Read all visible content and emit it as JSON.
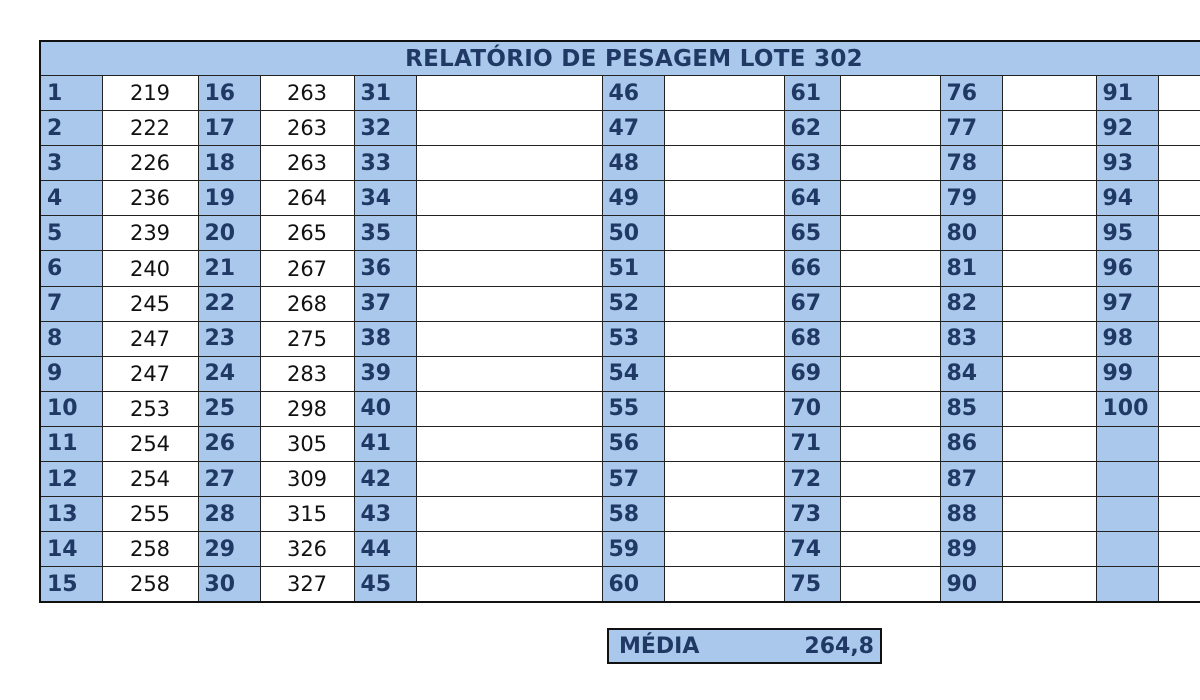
{
  "title": "RELATÓRIO DE PESAGEM LOTE 302",
  "weights": {
    "1": "219",
    "2": "222",
    "3": "226",
    "4": "236",
    "5": "239",
    "6": "240",
    "7": "245",
    "8": "247",
    "9": "247",
    "10": "253",
    "11": "254",
    "12": "254",
    "13": "255",
    "14": "258",
    "15": "258",
    "16": "263",
    "17": "263",
    "18": "263",
    "19": "264",
    "20": "265",
    "21": "267",
    "22": "268",
    "23": "275",
    "24": "283",
    "25": "298",
    "26": "305",
    "27": "309",
    "28": "315",
    "29": "326",
    "30": "327"
  },
  "total_animals": 100,
  "rows_per_column": 15,
  "footer": {
    "label": "MÉDIA",
    "value": "264,8"
  }
}
